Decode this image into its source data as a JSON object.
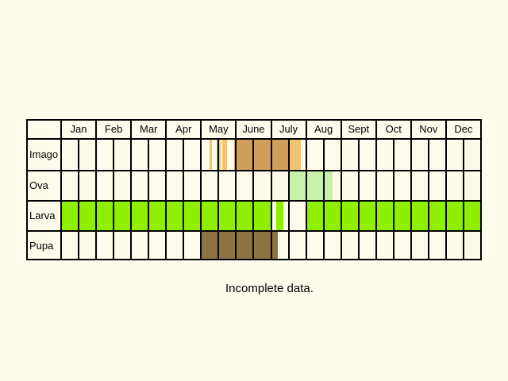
{
  "months": [
    "Jan",
    "Feb",
    "Mar",
    "Apr",
    "May",
    "June",
    "July",
    "Aug",
    "Sept",
    "Oct",
    "Nov",
    "Dec"
  ],
  "stages": [
    {
      "name": "Imago",
      "color": "#d19e5a",
      "spans": [
        [
          4.25,
          4.3,
          "#f0c470"
        ],
        [
          4.45,
          4.55,
          "#f0c470"
        ],
        [
          4.6,
          4.75,
          "#f0c470"
        ],
        [
          4.95,
          5.1,
          "#d19e5a"
        ],
        [
          5.0,
          6.5,
          "#d19e5a"
        ],
        [
          6.5,
          6.85,
          "#f0c470"
        ]
      ]
    },
    {
      "name": "Ova",
      "color": "#c8f0a8",
      "spans": [
        [
          6.5,
          7.75,
          "#c8f0a8"
        ]
      ]
    },
    {
      "name": "Larva",
      "color": "#8ef000",
      "spans": [
        [
          0,
          6.0,
          "#8ef000"
        ],
        [
          6.15,
          6.35,
          "#8ef000"
        ],
        [
          7.0,
          12.0,
          "#8ef000"
        ]
      ]
    },
    {
      "name": "Pupa",
      "color": "#8f7340",
      "spans": [
        [
          4.0,
          6.2,
          "#8f7340"
        ]
      ]
    }
  ],
  "caption": "Incomplete data."
}
